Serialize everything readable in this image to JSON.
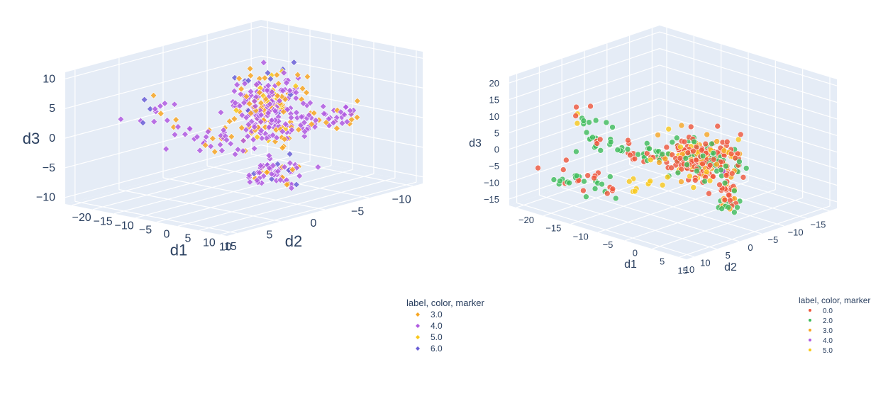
{
  "chart_data": [
    {
      "type": "scatter3d",
      "marker_symbol": "diamond",
      "legend": {
        "title": "label, color, marker",
        "items": [
          {
            "label": "3.0",
            "color": "#f7a623"
          },
          {
            "label": "4.0",
            "color": "#b05be0"
          },
          {
            "label": "5.0",
            "color": "#f9c81a"
          },
          {
            "label": "6.0",
            "color": "#6a5fd6"
          }
        ]
      },
      "axes": {
        "x": {
          "title": "d1",
          "range": [
            -20,
            15
          ],
          "ticks": [
            "−20",
            "−15",
            "−10",
            "−5",
            "0",
            "5",
            "10",
            "15"
          ]
        },
        "y": {
          "title": "d2",
          "range": [
            -10,
            13
          ],
          "ticks": [
            "−10",
            "−5",
            "0",
            "5",
            "10"
          ]
        },
        "z": {
          "title": "d3",
          "range": [
            -10,
            13
          ],
          "ticks": [
            "−10",
            "−5",
            "0",
            "5",
            "10"
          ]
        }
      },
      "clusters": [
        {
          "color_index": 1,
          "count": 140,
          "center": [
            0,
            0,
            5
          ],
          "spread": [
            2.2,
            2.2,
            3
          ]
        },
        {
          "color_index": 0,
          "count": 60,
          "center": [
            0,
            0,
            5
          ],
          "spread": [
            2,
            2,
            3
          ]
        },
        {
          "color_index": 2,
          "count": 20,
          "center": [
            0,
            0,
            5
          ],
          "spread": [
            2,
            2,
            3
          ]
        },
        {
          "color_index": 3,
          "count": 15,
          "center": [
            -1,
            0,
            7
          ],
          "spread": [
            1.5,
            1.5,
            2
          ]
        },
        {
          "color_index": 1,
          "count": 45,
          "center": [
            0,
            -6,
            0
          ],
          "spread": [
            1,
            3,
            1
          ]
        },
        {
          "color_index": 0,
          "count": 20,
          "center": [
            0,
            -6,
            0
          ],
          "spread": [
            1,
            3,
            1
          ]
        },
        {
          "color_index": 1,
          "count": 40,
          "center": [
            7,
            3,
            -4
          ],
          "spread": [
            3,
            1,
            1.5
          ]
        },
        {
          "color_index": 0,
          "count": 12,
          "center": [
            7,
            3,
            -4
          ],
          "spread": [
            3,
            1,
            1.5
          ]
        },
        {
          "color_index": 3,
          "count": 8,
          "center": [
            7,
            3,
            -4
          ],
          "spread": [
            3,
            1,
            1.5
          ]
        },
        {
          "color_index": 1,
          "count": 25,
          "center": [
            -8,
            3,
            -1
          ],
          "spread": [
            3.5,
            1,
            1
          ]
        },
        {
          "color_index": 0,
          "count": 8,
          "center": [
            -8,
            3,
            -1
          ],
          "spread": [
            3.5,
            1,
            1
          ]
        },
        {
          "color_index": 1,
          "count": 10,
          "center": [
            -16,
            4,
            3
          ],
          "spread": [
            2,
            1,
            3
          ]
        },
        {
          "color_index": 3,
          "count": 3,
          "center": [
            -17,
            4,
            3
          ],
          "spread": [
            1.5,
            1,
            2
          ]
        },
        {
          "color_index": 0,
          "count": 4,
          "center": [
            -16,
            3,
            2
          ],
          "spread": [
            2,
            1,
            3
          ]
        }
      ]
    },
    {
      "type": "scatter3d",
      "marker_symbol": "circle",
      "legend": {
        "title": "label, color, marker",
        "items": [
          {
            "label": "0.0",
            "color": "#ef553b"
          },
          {
            "label": "2.0",
            "color": "#3dbb5a"
          },
          {
            "label": "3.0",
            "color": "#f7a623"
          },
          {
            "label": "4.0",
            "color": "#b05be0"
          },
          {
            "label": "5.0",
            "color": "#f9c81a"
          }
        ]
      },
      "axes": {
        "x": {
          "title": "d1",
          "range": [
            -20,
            10
          ],
          "ticks": [
            "−20",
            "−15",
            "−10",
            "−5",
            "0",
            "5",
            "10"
          ]
        },
        "y": {
          "title": "d2",
          "range": [
            -15,
            15
          ],
          "ticks": [
            "−15",
            "−10",
            "−5",
            "0",
            "5",
            "10",
            "15"
          ]
        },
        "z": {
          "title": "d3",
          "range": [
            -15,
            20
          ],
          "ticks": [
            "−15",
            "−10",
            "−5",
            "0",
            "5",
            "10",
            "15",
            "20"
          ]
        }
      },
      "clusters": [
        {
          "color_index": 0,
          "count": 140,
          "center": [
            0,
            0,
            0
          ],
          "spread": [
            2.5,
            2.5,
            2.5
          ]
        },
        {
          "color_index": 1,
          "count": 60,
          "center": [
            0,
            0,
            0
          ],
          "spread": [
            2.5,
            2.5,
            2.5
          ]
        },
        {
          "color_index": 2,
          "count": 40,
          "center": [
            0,
            0,
            0
          ],
          "spread": [
            2.5,
            2.5,
            2.5
          ]
        },
        {
          "color_index": 4,
          "count": 25,
          "center": [
            0,
            0,
            0
          ],
          "spread": [
            2.5,
            2.5,
            2.5
          ]
        },
        {
          "color_index": 3,
          "count": 6,
          "center": [
            0,
            0,
            0
          ],
          "spread": [
            2,
            2,
            2
          ]
        },
        {
          "color_index": 0,
          "count": 20,
          "center": [
            0,
            -5,
            -12
          ],
          "spread": [
            0.6,
            0.6,
            3
          ]
        },
        {
          "color_index": 2,
          "count": 10,
          "center": [
            0,
            -5,
            -12
          ],
          "spread": [
            0.6,
            0.6,
            3
          ]
        },
        {
          "color_index": 1,
          "count": 12,
          "center": [
            0,
            -5,
            -15
          ],
          "spread": [
            0.8,
            0.8,
            1.5
          ]
        },
        {
          "color_index": 1,
          "count": 25,
          "center": [
            -7,
            3,
            0
          ],
          "spread": [
            3,
            0.8,
            1
          ]
        },
        {
          "color_index": 0,
          "count": 15,
          "center": [
            -7,
            3,
            0
          ],
          "spread": [
            3,
            0.8,
            1
          ]
        },
        {
          "color_index": 1,
          "count": 15,
          "center": [
            -15,
            5,
            4
          ],
          "spread": [
            2,
            1,
            3
          ]
        },
        {
          "color_index": 0,
          "count": 6,
          "center": [
            -15,
            5,
            4
          ],
          "spread": [
            2,
            1,
            3
          ]
        },
        {
          "color_index": 4,
          "count": 2,
          "center": [
            -16,
            5,
            5
          ],
          "spread": [
            1,
            1,
            2
          ]
        },
        {
          "color_index": 1,
          "count": 20,
          "center": [
            -10,
            12,
            -5
          ],
          "spread": [
            3,
            2,
            1
          ]
        },
        {
          "color_index": 0,
          "count": 15,
          "center": [
            -10,
            12,
            -5
          ],
          "spread": [
            3,
            2,
            1
          ]
        },
        {
          "color_index": 4,
          "count": 10,
          "center": [
            0,
            10,
            -3
          ],
          "spread": [
            1.5,
            1.5,
            1.5
          ]
        }
      ]
    }
  ]
}
